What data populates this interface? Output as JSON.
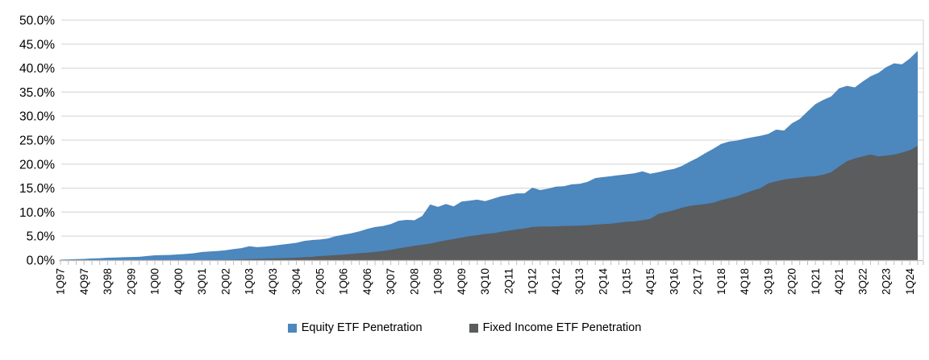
{
  "chart_data": {
    "type": "area",
    "title": "",
    "grid": true,
    "legend_position": "bottom-center",
    "colors": {
      "equity": "#4C87BE",
      "fixed_income": "#5A5C5E",
      "gridline": "#D9D9D9",
      "axis_tick": "#BFBFBF",
      "label_text": "#000000"
    },
    "y_axis": {
      "min": 0,
      "max": 50,
      "step": 5,
      "tick_labels": [
        "0.0%",
        "5.0%",
        "10.0%",
        "15.0%",
        "20.0%",
        "25.0%",
        "30.0%",
        "35.0%",
        "40.0%",
        "45.0%",
        "50.0%"
      ]
    },
    "x_axis": {
      "start_period": "1Q97",
      "end_period": "2Q24",
      "points_per_label": 3,
      "tick_labels": [
        "1Q97",
        "4Q97",
        "3Q98",
        "2Q99",
        "1Q00",
        "4Q00",
        "3Q01",
        "2Q02",
        "1Q03",
        "4Q03",
        "3Q04",
        "2Q05",
        "1Q06",
        "4Q06",
        "3Q07",
        "2Q08",
        "1Q09",
        "4Q09",
        "3Q10",
        "2Q11",
        "1Q12",
        "4Q12",
        "3Q13",
        "2Q14",
        "1Q15",
        "4Q15",
        "3Q16",
        "2Q17",
        "1Q18",
        "4Q18",
        "3Q19",
        "2Q20",
        "1Q21",
        "4Q21",
        "3Q22",
        "2Q23",
        "1Q24"
      ]
    },
    "series": [
      {
        "name": "Equity ETF Penetration",
        "color": "#4C87BE",
        "values": [
          0.1,
          0.15,
          0.2,
          0.25,
          0.35,
          0.4,
          0.5,
          0.55,
          0.6,
          0.65,
          0.7,
          0.85,
          1.0,
          1.05,
          1.1,
          1.2,
          1.3,
          1.45,
          1.7,
          1.8,
          1.9,
          2.05,
          2.3,
          2.5,
          2.9,
          2.7,
          2.8,
          3.0,
          3.2,
          3.4,
          3.6,
          4.0,
          4.2,
          4.3,
          4.5,
          5.0,
          5.3,
          5.6,
          6.0,
          6.5,
          6.9,
          7.1,
          7.5,
          8.2,
          8.4,
          8.3,
          9.2,
          11.6,
          11.1,
          11.7,
          11.2,
          12.2,
          12.4,
          12.6,
          12.3,
          12.8,
          13.3,
          13.6,
          13.9,
          13.9,
          15.1,
          14.6,
          14.9,
          15.3,
          15.4,
          15.8,
          15.9,
          16.3,
          17.1,
          17.3,
          17.5,
          17.7,
          17.9,
          18.1,
          18.5,
          18.0,
          18.3,
          18.7,
          19.0,
          19.6,
          20.5,
          21.3,
          22.3,
          23.2,
          24.2,
          24.7,
          24.9,
          25.3,
          25.6,
          25.9,
          26.3,
          27.2,
          27.0,
          28.5,
          29.4,
          31.0,
          32.5,
          33.4,
          34.1,
          35.8,
          36.3,
          36.0,
          37.2,
          38.3,
          39.0,
          40.2,
          41.0,
          40.8,
          42.0,
          43.6
        ]
      },
      {
        "name": "Fixed Income ETF Penetration",
        "color": "#5A5C5E",
        "values": [
          0,
          0,
          0,
          0,
          0,
          0,
          0,
          0,
          0,
          0,
          0,
          0,
          0,
          0,
          0,
          0,
          0,
          0,
          0,
          0.05,
          0.05,
          0.05,
          0.1,
          0.15,
          0.2,
          0.25,
          0.3,
          0.35,
          0.4,
          0.45,
          0.5,
          0.6,
          0.7,
          0.85,
          0.95,
          1.05,
          1.15,
          1.3,
          1.45,
          1.55,
          1.7,
          1.9,
          2.15,
          2.45,
          2.7,
          3.0,
          3.2,
          3.45,
          3.8,
          4.1,
          4.4,
          4.7,
          5.0,
          5.2,
          5.45,
          5.6,
          5.9,
          6.15,
          6.4,
          6.6,
          6.9,
          7.0,
          7.0,
          7.05,
          7.1,
          7.15,
          7.2,
          7.25,
          7.4,
          7.5,
          7.6,
          7.8,
          8.0,
          8.1,
          8.3,
          8.6,
          9.6,
          10.0,
          10.4,
          10.9,
          11.3,
          11.5,
          11.7,
          11.95,
          12.5,
          12.9,
          13.3,
          13.9,
          14.5,
          15.0,
          16.0,
          16.4,
          16.8,
          17.0,
          17.2,
          17.4,
          17.5,
          17.8,
          18.3,
          19.5,
          20.6,
          21.2,
          21.6,
          22.0,
          21.6,
          21.8,
          22.0,
          22.4,
          22.9,
          23.8
        ]
      }
    ]
  },
  "legend": {
    "items": [
      {
        "label": "Equity ETF Penetration",
        "color": "#4C87BE"
      },
      {
        "label": "Fixed Income ETF Penetration",
        "color": "#5A5C5E"
      }
    ]
  }
}
